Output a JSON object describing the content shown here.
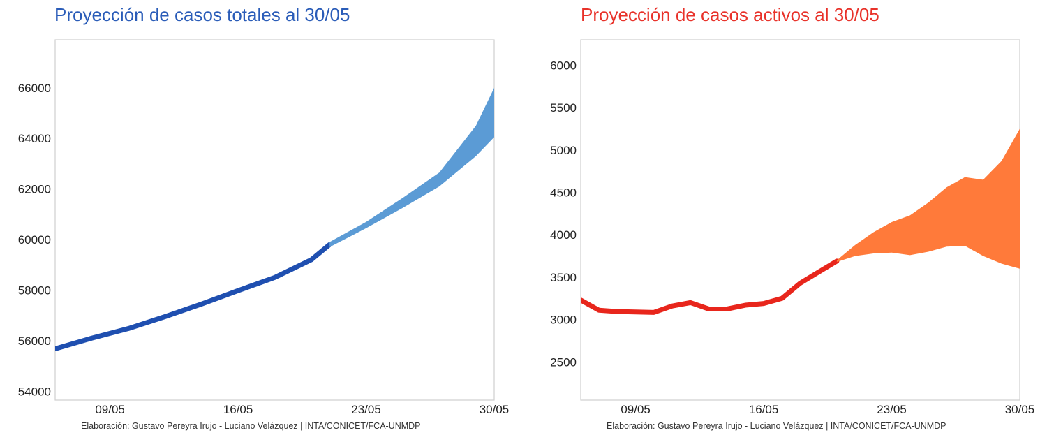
{
  "chart_data": [
    {
      "type": "line",
      "title": "Proyección de casos totales al 30/05",
      "title_color": "#2a5cb8",
      "xlabel": "",
      "ylabel": "",
      "x_ticks": [
        "09/05",
        "16/05",
        "23/05",
        "30/05"
      ],
      "y_ticks": [
        "54000",
        "56000",
        "58000",
        "60000",
        "62000",
        "64000",
        "66000"
      ],
      "xlim": [
        "06/05",
        "30/05"
      ],
      "ylim": [
        53650,
        67900
      ],
      "grid": false,
      "legend": "none",
      "series": [
        {
          "color": "#1f4fb0",
          "style": "observed-line",
          "points": [
            [
              "06/05",
              55680
            ],
            [
              "08/05",
              56100
            ],
            [
              "10/05",
              56480
            ],
            [
              "12/05",
              56950
            ],
            [
              "14/05",
              57450
            ],
            [
              "16/05",
              57980
            ],
            [
              "18/05",
              58500
            ],
            [
              "20/05",
              59200
            ],
            [
              "21/05",
              59800
            ]
          ]
        },
        {
          "color": "#5b9bd5",
          "style": "projection-band",
          "points_low": [
            [
              "21/05",
              59700
            ],
            [
              "23/05",
              60450
            ],
            [
              "25/05",
              61250
            ],
            [
              "27/05",
              62100
            ],
            [
              "29/05",
              63300
            ],
            [
              "30/05",
              64050
            ]
          ],
          "points_high": [
            [
              "21/05",
              59900
            ],
            [
              "23/05",
              60700
            ],
            [
              "25/05",
              61650
            ],
            [
              "27/05",
              62650
            ],
            [
              "29/05",
              64500
            ],
            [
              "30/05",
              66000
            ]
          ]
        }
      ]
    },
    {
      "type": "line",
      "title": "Proyección de casos activos al 30/05",
      "title_color": "#e8322a",
      "xlabel": "",
      "ylabel": "",
      "x_ticks": [
        "09/05",
        "16/05",
        "23/05",
        "30/05"
      ],
      "y_ticks": [
        "2500",
        "3000",
        "3500",
        "4000",
        "4500",
        "5000",
        "5500",
        "6000"
      ],
      "xlim": [
        "06/05",
        "30/05"
      ],
      "ylim": [
        2050,
        6300
      ],
      "grid": false,
      "legend": "none",
      "series": [
        {
          "color": "#e8261c",
          "style": "observed-line",
          "points": [
            [
              "06/05",
              3230
            ],
            [
              "07/05",
              3110
            ],
            [
              "08/05",
              3095
            ],
            [
              "09/05",
              3090
            ],
            [
              "10/05",
              3085
            ],
            [
              "11/05",
              3160
            ],
            [
              "12/05",
              3200
            ],
            [
              "13/05",
              3125
            ],
            [
              "14/05",
              3125
            ],
            [
              "15/05",
              3170
            ],
            [
              "16/05",
              3190
            ],
            [
              "17/05",
              3250
            ],
            [
              "18/05",
              3430
            ],
            [
              "19/05",
              3560
            ],
            [
              "20/05",
              3690
            ]
          ]
        },
        {
          "color": "#ff7a3a",
          "style": "projection-band",
          "points_low": [
            [
              "20/05",
              3680
            ],
            [
              "21/05",
              3750
            ],
            [
              "22/05",
              3780
            ],
            [
              "23/05",
              3790
            ],
            [
              "24/05",
              3760
            ],
            [
              "25/05",
              3800
            ],
            [
              "26/05",
              3860
            ],
            [
              "27/05",
              3870
            ],
            [
              "28/05",
              3750
            ],
            [
              "29/05",
              3660
            ],
            [
              "30/05",
              3600
            ]
          ],
          "points_high": [
            [
              "20/05",
              3700
            ],
            [
              "21/05",
              3880
            ],
            [
              "22/05",
              4030
            ],
            [
              "23/05",
              4150
            ],
            [
              "24/05",
              4230
            ],
            [
              "25/05",
              4380
            ],
            [
              "26/05",
              4560
            ],
            [
              "27/05",
              4680
            ],
            [
              "28/05",
              4650
            ],
            [
              "29/05",
              4870
            ],
            [
              "30/05",
              5250
            ]
          ]
        }
      ]
    }
  ],
  "credits": {
    "left": "Elaboración: Gustavo Pereyra Irujo - Luciano Velázquez | INTA/CONICET/FCA-UNMDP",
    "right": "Elaboración: Gustavo Pereyra Irujo - Luciano Velázquez | INTA/CONICET/FCA-UNMDP"
  }
}
